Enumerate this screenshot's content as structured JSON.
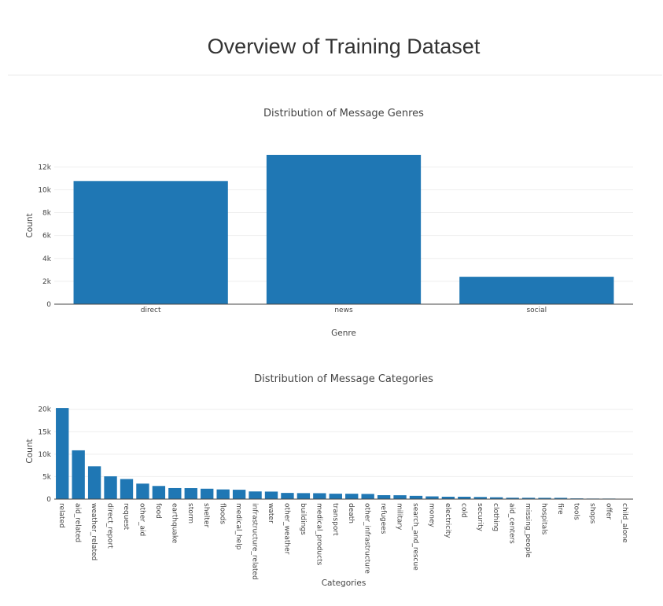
{
  "page": {
    "title": "Overview of Training Dataset"
  },
  "colors": {
    "bar": "#1f77b4"
  },
  "chart_data": [
    {
      "type": "bar",
      "title": "Distribution of Message Genres",
      "xlabel": "Genre",
      "ylabel": "Count",
      "categories": [
        "direct",
        "news",
        "social"
      ],
      "values": [
        10766,
        13054,
        2396
      ],
      "ylim": [
        0,
        13741
      ],
      "yticks": [
        0,
        2000,
        4000,
        6000,
        8000,
        10000,
        12000
      ],
      "ytick_labels": [
        "0",
        "2k",
        "4k",
        "6k",
        "8k",
        "10k",
        "12k"
      ],
      "grid": true
    },
    {
      "type": "bar",
      "title": "Distribution of Message Categories",
      "xlabel": "Categories",
      "ylabel": "Count",
      "categories": [
        "related",
        "aid_related",
        "weather_related",
        "direct_report",
        "request",
        "other_aid",
        "food",
        "earthquake",
        "storm",
        "shelter",
        "floods",
        "medical_help",
        "infrastructure_related",
        "water",
        "other_weather",
        "buildings",
        "medical_products",
        "transport",
        "death",
        "other_infrastructure",
        "refugees",
        "military",
        "search_and_rescue",
        "money",
        "electricity",
        "cold",
        "security",
        "clothing",
        "aid_centers",
        "missing_people",
        "hospitals",
        "fire",
        "tools",
        "shops",
        "offer",
        "child_alone"
      ],
      "values": [
        20282,
        10860,
        7297,
        5075,
        4474,
        3446,
        2923,
        2455,
        2443,
        2314,
        2155,
        2084,
        1705,
        1672,
        1376,
        1333,
        1313,
        1201,
        1194,
        1151,
        875,
        860,
        724,
        604,
        532,
        530,
        471,
        405,
        309,
        298,
        283,
        282,
        159,
        120,
        118,
        0
      ],
      "ylim": [
        0,
        21349
      ],
      "yticks": [
        0,
        5000,
        10000,
        15000,
        20000
      ],
      "ytick_labels": [
        "0",
        "5k",
        "10k",
        "15k",
        "20k"
      ],
      "grid": true
    }
  ]
}
